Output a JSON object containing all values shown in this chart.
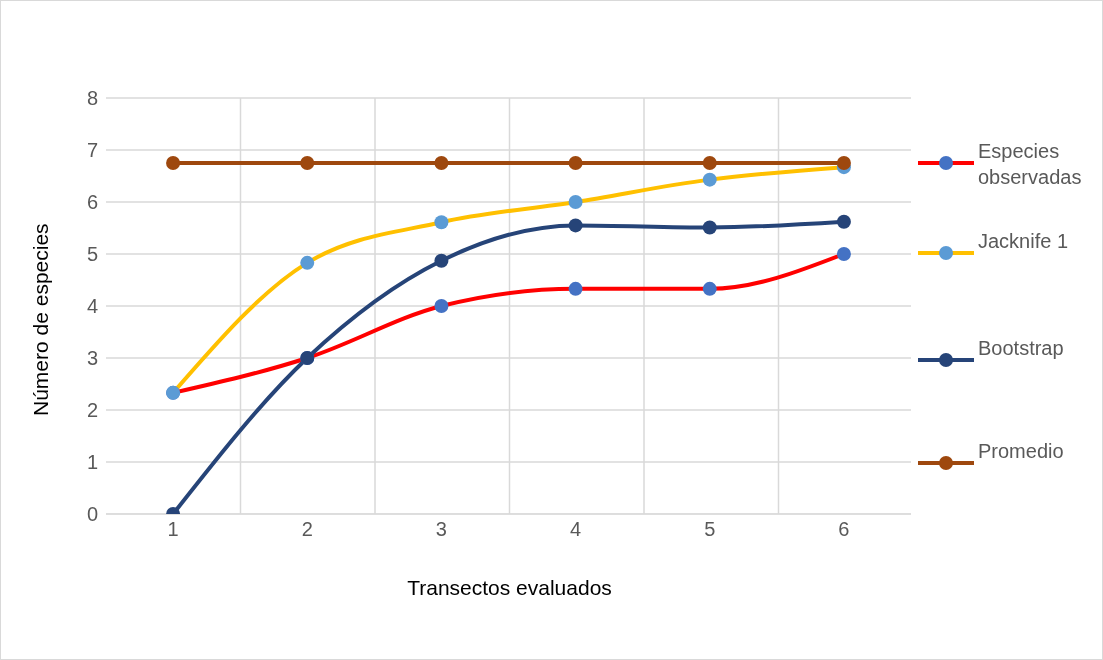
{
  "chart_data": {
    "type": "line",
    "xlabel": "Transectos evaluados",
    "ylabel": "Número de especies",
    "categories": [
      "1",
      "2",
      "3",
      "4",
      "5",
      "6"
    ],
    "series": [
      {
        "name": "Especies observadas",
        "color": "#ff0000",
        "colors": [
          "#4472c4",
          "#4472c4",
          "#4472c4",
          "#4472c4",
          "#4472c4",
          "#4472c4"
        ],
        "values": [
          2.33,
          3,
          4,
          4.33,
          4.33,
          5
        ]
      },
      {
        "name": "Jacknife 1",
        "color": "#ffc000",
        "colors": [
          "#5b9bd5",
          "#5b9bd5",
          "#5b9bd5",
          "#5b9bd5",
          "#5b9bd5",
          "#5b9bd5"
        ],
        "values": [
          2.33,
          4.83,
          5.61,
          6,
          6.43,
          6.67
        ]
      },
      {
        "name": "Bootstrap",
        "color": "#264478",
        "values": [
          0,
          3,
          4.87,
          5.55,
          5.51,
          5.62
        ]
      },
      {
        "name": "Promedio",
        "color": "#9e480e",
        "values": [
          6.75,
          6.75,
          6.75,
          6.75,
          6.75,
          6.75
        ]
      }
    ],
    "ylim": [
      0,
      8
    ],
    "yticks": [
      0,
      1,
      2,
      3,
      4,
      5,
      6,
      7,
      8
    ],
    "grid": true,
    "legend": "right",
    "marker": "circle"
  }
}
